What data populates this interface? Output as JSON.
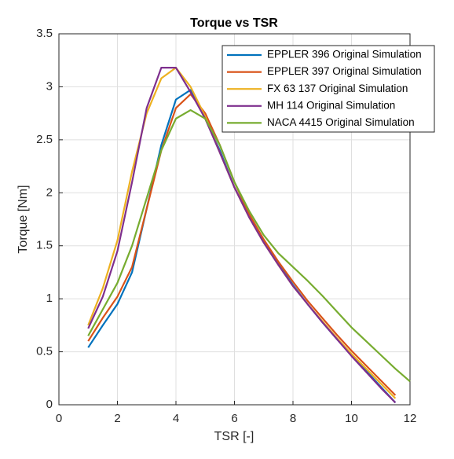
{
  "chart_data": {
    "type": "line",
    "title": "Torque vs TSR",
    "x_label": "TSR [-]",
    "y_label": "Torque [Nm]",
    "x": [
      1,
      1.5,
      2,
      2.5,
      3,
      3.5,
      4,
      4.5,
      5,
      5.5,
      6,
      6.5,
      7,
      7.5,
      8,
      8.5,
      9,
      9.5,
      10,
      10.5,
      11,
      11.5,
      12
    ],
    "series": [
      {
        "name": "EPPLER 396 Original Simulation",
        "color": "#0072bd",
        "values": [
          0.54,
          0.75,
          0.95,
          1.25,
          1.85,
          2.45,
          2.88,
          2.97,
          2.7,
          2.4,
          2.05,
          1.78,
          1.55,
          1.33,
          1.13,
          0.95,
          0.78,
          0.62,
          0.47,
          0.32,
          0.17,
          0.02,
          null
        ]
      },
      {
        "name": "EPPLER 397 Original Simulation",
        "color": "#d95319",
        "values": [
          0.6,
          0.82,
          1.02,
          1.3,
          1.85,
          2.4,
          2.8,
          2.93,
          2.75,
          2.45,
          2.1,
          1.8,
          1.56,
          1.35,
          1.16,
          0.98,
          0.82,
          0.66,
          0.51,
          0.37,
          0.23,
          0.09,
          null
        ]
      },
      {
        "name": "FX 63 137 Original Simulation",
        "color": "#edb120",
        "values": [
          0.75,
          1.1,
          1.55,
          2.2,
          2.75,
          3.08,
          3.18,
          3.0,
          2.72,
          2.38,
          2.05,
          1.77,
          1.53,
          1.32,
          1.12,
          0.95,
          0.79,
          0.63,
          0.48,
          0.34,
          0.2,
          0.06,
          null
        ]
      },
      {
        "name": "MH 114 Original Simulation",
        "color": "#7e2f8e",
        "values": [
          0.72,
          1.02,
          1.45,
          2.1,
          2.8,
          3.18,
          3.18,
          2.95,
          2.7,
          2.38,
          2.05,
          1.77,
          1.53,
          1.32,
          1.12,
          0.95,
          0.78,
          0.62,
          0.46,
          0.31,
          0.16,
          0.02,
          null
        ]
      },
      {
        "name": "NACA 4415 Original Simulation",
        "color": "#77ac30",
        "values": [
          0.65,
          0.9,
          1.15,
          1.5,
          1.95,
          2.4,
          2.7,
          2.78,
          2.7,
          2.45,
          2.1,
          1.83,
          1.6,
          1.43,
          1.3,
          1.17,
          1.03,
          0.88,
          0.73,
          0.6,
          0.47,
          0.34,
          0.22
        ]
      }
    ],
    "xlim": [
      0,
      12
    ],
    "xticks": [
      0,
      2,
      4,
      6,
      8,
      10,
      12
    ],
    "ylim": [
      0,
      3.5
    ],
    "yticks": [
      0,
      0.5,
      1,
      1.5,
      2,
      2.5,
      3,
      3.5
    ],
    "grid": true,
    "legend": "northeast"
  }
}
